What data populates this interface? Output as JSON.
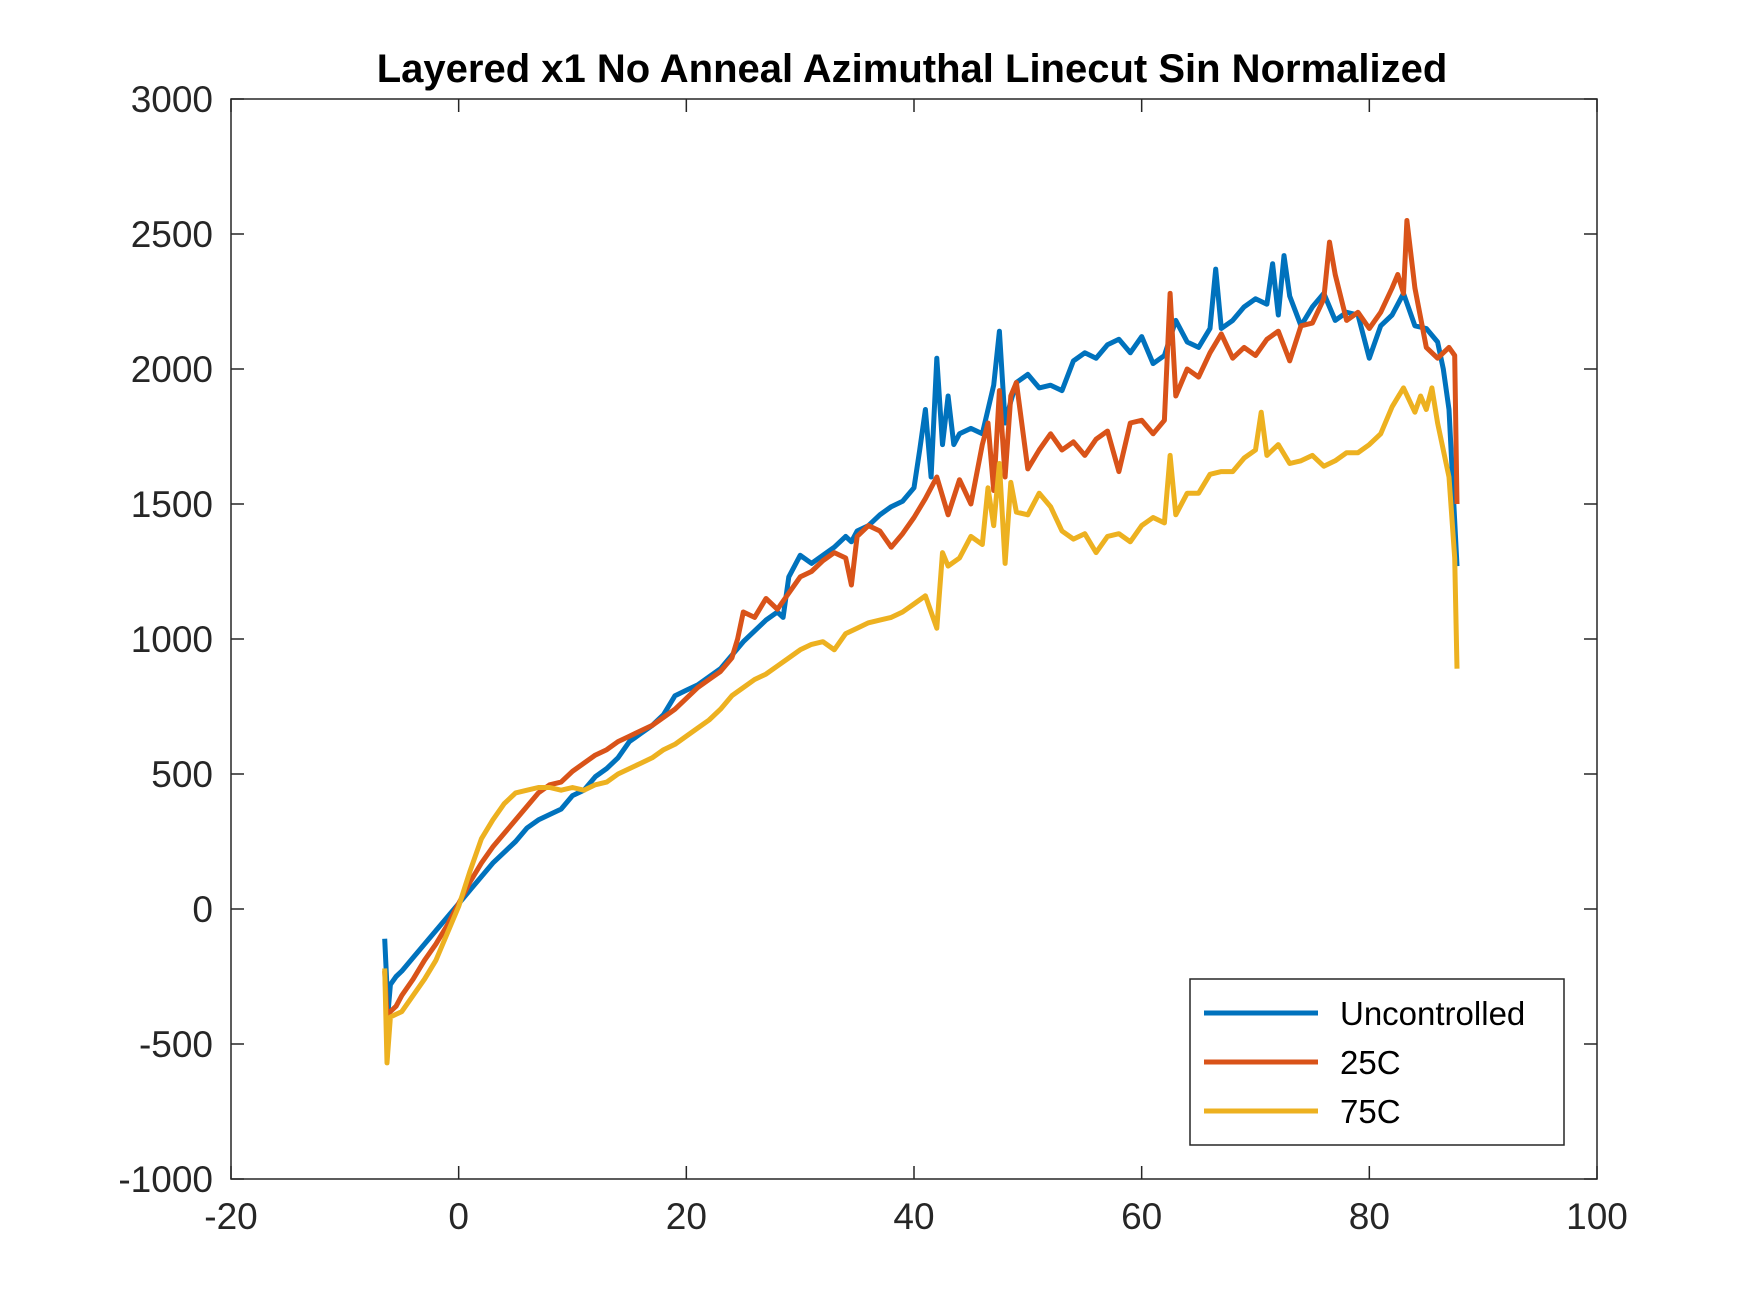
{
  "chart_data": {
    "type": "line",
    "title": "Layered x1 No Anneal Azimuthal Linecut Sin Normalized",
    "xlabel": "",
    "ylabel": "",
    "xlim": [
      -20,
      100
    ],
    "ylim": [
      -1000,
      3000
    ],
    "xticks": [
      -20,
      0,
      20,
      40,
      60,
      80,
      100
    ],
    "yticks": [
      -1000,
      -500,
      0,
      500,
      1000,
      1500,
      2000,
      2500,
      3000
    ],
    "grid": false,
    "legend_location": "bottom-right",
    "series": [
      {
        "name": "Uncontrolled",
        "color": "#0072BD",
        "x": [
          -6.5,
          -6.2,
          -6.0,
          -5.5,
          -5.0,
          -4.0,
          -3.0,
          -2.0,
          -1.0,
          0.0,
          1.0,
          2.0,
          3.0,
          4.0,
          5.0,
          6.0,
          7.0,
          8.0,
          9.0,
          10.0,
          11.0,
          12.0,
          13.0,
          14.0,
          15.0,
          16.0,
          17.0,
          18.0,
          19.0,
          20.0,
          21.0,
          22.0,
          23.0,
          24.0,
          25.0,
          26.0,
          27.0,
          28.0,
          28.5,
          29.0,
          30.0,
          31.0,
          32.0,
          33.0,
          34.0,
          34.5,
          35.0,
          36.0,
          37.0,
          38.0,
          39.0,
          40.0,
          40.5,
          41.0,
          41.5,
          42.0,
          42.5,
          43.0,
          43.5,
          44.0,
          45.0,
          46.0,
          47.0,
          47.5,
          48.0,
          48.5,
          49.0,
          50.0,
          51.0,
          52.0,
          53.0,
          54.0,
          55.0,
          56.0,
          57.0,
          58.0,
          59.0,
          60.0,
          61.0,
          62.0,
          63.0,
          64.0,
          65.0,
          66.0,
          66.5,
          67.0,
          68.0,
          69.0,
          70.0,
          71.0,
          71.5,
          72.0,
          72.5,
          73.0,
          74.0,
          75.0,
          76.0,
          77.0,
          78.0,
          79.0,
          80.0,
          81.0,
          82.0,
          83.0,
          84.0,
          85.0,
          86.0,
          86.5,
          87.0,
          87.7
        ],
        "y": [
          -110,
          -380,
          -280,
          -250,
          -230,
          -180,
          -130,
          -80,
          -30,
          20,
          70,
          120,
          170,
          210,
          250,
          300,
          330,
          350,
          370,
          420,
          440,
          490,
          520,
          560,
          620,
          650,
          680,
          720,
          790,
          810,
          830,
          860,
          890,
          940,
          990,
          1030,
          1070,
          1100,
          1080,
          1230,
          1310,
          1280,
          1310,
          1340,
          1380,
          1360,
          1400,
          1420,
          1460,
          1490,
          1510,
          1560,
          1700,
          1850,
          1600,
          2040,
          1720,
          1900,
          1720,
          1760,
          1780,
          1760,
          1940,
          2140,
          1800,
          1880,
          1950,
          1980,
          1930,
          1940,
          1920,
          2030,
          2060,
          2040,
          2090,
          2110,
          2060,
          2120,
          2020,
          2050,
          2180,
          2100,
          2080,
          2150,
          2370,
          2150,
          2180,
          2230,
          2260,
          2240,
          2390,
          2200,
          2420,
          2270,
          2160,
          2230,
          2280,
          2180,
          2210,
          2200,
          2040,
          2160,
          2200,
          2280,
          2160,
          2150,
          2100,
          2000,
          1850,
          1270
        ]
      },
      {
        "name": "25C",
        "color": "#D95319",
        "x": [
          -6.5,
          -6.3,
          -6.0,
          -5.5,
          -5.0,
          -4.0,
          -3.0,
          -2.0,
          -1.0,
          0.0,
          1.0,
          2.0,
          3.0,
          4.0,
          5.0,
          6.0,
          7.0,
          8.0,
          9.0,
          10.0,
          11.0,
          12.0,
          13.0,
          14.0,
          15.0,
          16.0,
          17.0,
          18.0,
          19.0,
          20.0,
          21.0,
          22.0,
          23.0,
          24.0,
          24.5,
          25.0,
          26.0,
          27.0,
          28.0,
          29.0,
          30.0,
          31.0,
          32.0,
          33.0,
          34.0,
          34.5,
          35.0,
          36.0,
          37.0,
          38.0,
          39.0,
          40.0,
          41.0,
          42.0,
          43.0,
          44.0,
          45.0,
          46.0,
          46.5,
          47.0,
          47.5,
          48.0,
          48.5,
          49.0,
          50.0,
          51.0,
          52.0,
          53.0,
          54.0,
          55.0,
          56.0,
          57.0,
          58.0,
          59.0,
          60.0,
          61.0,
          62.0,
          62.5,
          63.0,
          64.0,
          65.0,
          66.0,
          67.0,
          68.0,
          69.0,
          70.0,
          71.0,
          72.0,
          73.0,
          74.0,
          75.0,
          76.0,
          76.5,
          77.0,
          78.0,
          79.0,
          80.0,
          81.0,
          82.0,
          82.5,
          83.0,
          83.3,
          84.0,
          85.0,
          86.0,
          87.0,
          87.5,
          87.7
        ],
        "y": [
          -230,
          -400,
          -380,
          -360,
          -320,
          -260,
          -190,
          -130,
          -60,
          20,
          100,
          170,
          230,
          280,
          330,
          380,
          430,
          460,
          470,
          510,
          540,
          570,
          590,
          620,
          640,
          660,
          680,
          710,
          740,
          780,
          820,
          850,
          880,
          930,
          1000,
          1100,
          1080,
          1150,
          1110,
          1170,
          1230,
          1250,
          1290,
          1320,
          1300,
          1200,
          1380,
          1420,
          1400,
          1340,
          1390,
          1450,
          1520,
          1600,
          1460,
          1590,
          1500,
          1720,
          1800,
          1550,
          1920,
          1600,
          1900,
          1950,
          1630,
          1700,
          1760,
          1700,
          1730,
          1680,
          1740,
          1770,
          1620,
          1800,
          1810,
          1760,
          1810,
          2280,
          1900,
          2000,
          1970,
          2060,
          2130,
          2040,
          2080,
          2050,
          2110,
          2140,
          2030,
          2160,
          2170,
          2260,
          2470,
          2350,
          2180,
          2210,
          2150,
          2210,
          2300,
          2350,
          2280,
          2550,
          2300,
          2080,
          2040,
          2080,
          2050,
          1500
        ]
      },
      {
        "name": "75C",
        "color": "#EDB120",
        "x": [
          -6.5,
          -6.3,
          -6.0,
          -5.5,
          -5.0,
          -4.0,
          -3.0,
          -2.0,
          -1.0,
          0.0,
          1.0,
          2.0,
          3.0,
          4.0,
          5.0,
          6.0,
          7.0,
          8.0,
          9.0,
          10.0,
          11.0,
          12.0,
          13.0,
          14.0,
          15.0,
          16.0,
          17.0,
          18.0,
          19.0,
          20.0,
          21.0,
          22.0,
          23.0,
          24.0,
          25.0,
          26.0,
          27.0,
          28.0,
          29.0,
          30.0,
          31.0,
          32.0,
          33.0,
          34.0,
          35.0,
          36.0,
          37.0,
          38.0,
          39.0,
          40.0,
          41.0,
          42.0,
          42.5,
          43.0,
          44.0,
          45.0,
          46.0,
          46.5,
          47.0,
          47.5,
          48.0,
          48.5,
          49.0,
          50.0,
          51.0,
          52.0,
          53.0,
          54.0,
          55.0,
          56.0,
          57.0,
          58.0,
          59.0,
          60.0,
          61.0,
          62.0,
          62.5,
          63.0,
          64.0,
          65.0,
          66.0,
          67.0,
          68.0,
          69.0,
          70.0,
          70.5,
          71.0,
          72.0,
          73.0,
          74.0,
          75.0,
          76.0,
          77.0,
          78.0,
          79.0,
          80.0,
          81.0,
          82.0,
          83.0,
          84.0,
          84.5,
          85.0,
          85.5,
          86.0,
          87.0,
          87.5,
          87.7
        ],
        "y": [
          -220,
          -570,
          -400,
          -390,
          -380,
          -320,
          -260,
          -190,
          -90,
          10,
          140,
          260,
          330,
          390,
          430,
          440,
          450,
          450,
          440,
          450,
          440,
          460,
          470,
          500,
          520,
          540,
          560,
          590,
          610,
          640,
          670,
          700,
          740,
          790,
          820,
          850,
          870,
          900,
          930,
          960,
          980,
          990,
          960,
          1020,
          1040,
          1060,
          1070,
          1080,
          1100,
          1130,
          1160,
          1040,
          1320,
          1270,
          1300,
          1380,
          1350,
          1560,
          1420,
          1650,
          1280,
          1580,
          1470,
          1460,
          1540,
          1490,
          1400,
          1370,
          1390,
          1320,
          1380,
          1390,
          1360,
          1420,
          1450,
          1430,
          1680,
          1460,
          1540,
          1540,
          1610,
          1620,
          1620,
          1670,
          1700,
          1840,
          1680,
          1720,
          1650,
          1660,
          1680,
          1640,
          1660,
          1690,
          1690,
          1720,
          1760,
          1860,
          1930,
          1840,
          1900,
          1850,
          1930,
          1800,
          1600,
          1300,
          890
        ]
      }
    ]
  }
}
